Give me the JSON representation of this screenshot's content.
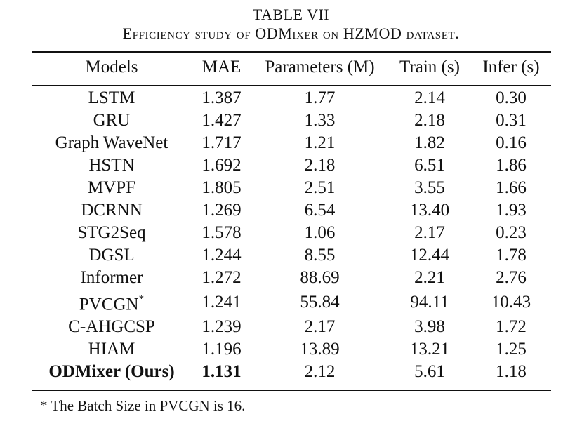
{
  "caption": {
    "number": "TABLE VII",
    "title": "Efficiency study of ODMixer on HZMOD dataset."
  },
  "table": {
    "headers": [
      "Models",
      "MAE",
      "Parameters (M)",
      "Train (s)",
      "Infer (s)"
    ],
    "rows": [
      {
        "model": "LSTM",
        "mae": "1.387",
        "params": "1.77",
        "train": "2.14",
        "infer": "0.30"
      },
      {
        "model": "GRU",
        "mae": "1.427",
        "params": "1.33",
        "train": "2.18",
        "infer": "0.31"
      },
      {
        "model": "Graph WaveNet",
        "mae": "1.717",
        "params": "1.21",
        "train": "1.82",
        "infer": "0.16"
      },
      {
        "model": "HSTN",
        "mae": "1.692",
        "params": "2.18",
        "train": "6.51",
        "infer": "1.86"
      },
      {
        "model": "MVPF",
        "mae": "1.805",
        "params": "2.51",
        "train": "3.55",
        "infer": "1.66"
      },
      {
        "model": "DCRNN",
        "mae": "1.269",
        "params": "6.54",
        "train": "13.40",
        "infer": "1.93"
      },
      {
        "model": "STG2Seq",
        "mae": "1.578",
        "params": "1.06",
        "train": "2.17",
        "infer": "0.23"
      },
      {
        "model": "DGSL",
        "mae": "1.244",
        "params": "8.55",
        "train": "12.44",
        "infer": "1.78"
      },
      {
        "model": "Informer",
        "mae": "1.272",
        "params": "88.69",
        "train": "2.21",
        "infer": "2.76"
      },
      {
        "model": "PVCGN",
        "model_mark": "*",
        "mae": "1.241",
        "params": "55.84",
        "train": "94.11",
        "infer": "10.43"
      },
      {
        "model": "C-AHGCSP",
        "mae": "1.239",
        "params": "2.17",
        "train": "3.98",
        "infer": "1.72"
      },
      {
        "model": "HIAM",
        "mae": "1.196",
        "params": "13.89",
        "train": "13.21",
        "infer": "1.25"
      },
      {
        "model": "ODMixer (Ours)",
        "mae": "1.131",
        "params": "2.12",
        "train": "5.61",
        "infer": "1.18",
        "bold": [
          "model",
          "mae"
        ]
      }
    ]
  },
  "footnote": "* The Batch Size in PVCGN is 16."
}
